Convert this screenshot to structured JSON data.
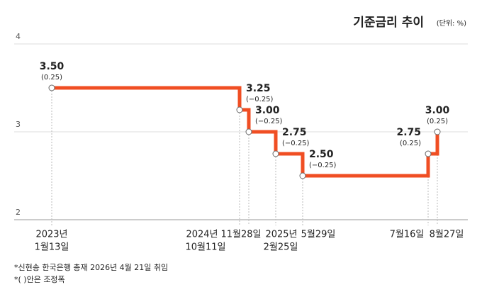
{
  "chart_data": {
    "type": "step",
    "title": "기준금리 추이",
    "subtitle": "(단위: %)",
    "categories": [
      [
        "2023년",
        "1월13일"
      ],
      [
        "2024년",
        "10월11일"
      ],
      [
        "11월28일"
      ],
      [
        "2025년",
        "2월25일"
      ],
      [
        "5월29일"
      ],
      [
        "7월16일"
      ],
      [
        "8월27일"
      ]
    ],
    "series": [
      {
        "name": "기준금리",
        "color": "#f04e23",
        "values": [
          3.5,
          3.25,
          3.0,
          2.75,
          2.5,
          2.75,
          3.0
        ],
        "value_labels": [
          "3.50",
          "3.25",
          "3.00",
          "2.75",
          "2.50",
          "2.75",
          "3.00"
        ],
        "changes": [
          0.25,
          -0.25,
          -0.25,
          -0.25,
          -0.25,
          0.25,
          0.25
        ],
        "change_labels": [
          "(0.25)",
          "(−0.25)",
          "(−0.25)",
          "(−0.25)",
          "(−0.25)",
          "(0.25)",
          "(0.25)"
        ]
      }
    ],
    "ylim": [
      2,
      4
    ],
    "yticks": [
      2,
      3,
      4
    ],
    "grid": true,
    "notes": [
      "*신현송 한국은행 총재 2026년 4월 21일 취임",
      "*( )안은 조정폭"
    ]
  }
}
